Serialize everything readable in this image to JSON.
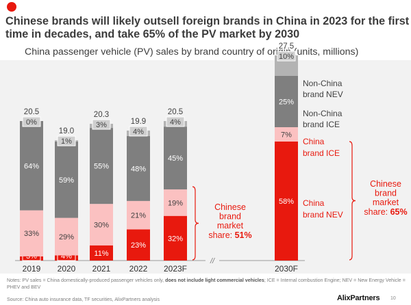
{
  "header": {
    "title": "Chinese brands will likely outsell foreign brands in China in 2023 for the first time in decades, and take 65% of the PV market by 2030",
    "subtitle": "China passenger vehicle (PV) sales by brand country of origin (units, millions)"
  },
  "chart_data": {
    "type": "bar",
    "stacked": true,
    "title": "China passenger vehicle (PV) sales by brand country of origin (units, millions)",
    "categories": [
      "2019",
      "2020",
      "2021",
      "2022",
      "2023F",
      "2030F"
    ],
    "totals": [
      20.5,
      19.0,
      20.3,
      19.9,
      20.5,
      27.5
    ],
    "series": [
      {
        "name": "China brand NEV",
        "color": "#e8190e",
        "percents": [
          3,
          4,
          11,
          23,
          32,
          58
        ],
        "labels": [
          "3%",
          "4%",
          "11%",
          "23%",
          "32%",
          "58%"
        ]
      },
      {
        "name": "China brand ICE",
        "color": "#fbc1c1",
        "percents": [
          33,
          29,
          30,
          21,
          19,
          7
        ],
        "labels": [
          "33%",
          "29%",
          "30%",
          "21%",
          "19%",
          "7%"
        ]
      },
      {
        "name": "Non-China brand ICE",
        "color": "#7f7f7f",
        "percents": [
          64,
          59,
          55,
          48,
          45,
          25
        ],
        "labels": [
          "64%",
          "59%",
          "55%",
          "48%",
          "45%",
          "25%"
        ]
      },
      {
        "name": "Non-China brand NEV",
        "color": "#b3b3b3",
        "percents": [
          0,
          1,
          3,
          4,
          4,
          10
        ],
        "labels": [
          "0%",
          "1%",
          "3%",
          "4%",
          "4%",
          "10%"
        ]
      }
    ],
    "legend": [
      {
        "line1": "Non-China",
        "line2": "brand NEV",
        "color": "#404040"
      },
      {
        "line1": "Non-China",
        "line2": "brand ICE",
        "color": "#404040"
      },
      {
        "line1": "China",
        "line2": "brand ICE",
        "color": "#e8190e"
      },
      {
        "line1": "China",
        "line2": "brand NEV",
        "color": "#e8190e"
      }
    ],
    "annotations": [
      {
        "lines": [
          "Chinese",
          "brand",
          "market",
          "share: "
        ],
        "value": "51%",
        "refers_to": "2023F"
      },
      {
        "lines": [
          "Chinese",
          "brand",
          "market",
          "share: "
        ],
        "value": "65%",
        "refers_to": "2030F"
      }
    ],
    "axis_break": "//"
  },
  "footer": {
    "notes_prefix": "Notes: PV sales = China domestically-produced passenger vehicles only, ",
    "notes_bold": "does not include light commercial vehicles",
    "notes_suffix": "; ICE = Internal combustion Engine; NEV = New Energy Vehicle = PHEV and BEV",
    "source": "Source: China auto insurance data, TF securities, AlixPartners analysis",
    "logo": "AlixPartners",
    "page": "10"
  }
}
